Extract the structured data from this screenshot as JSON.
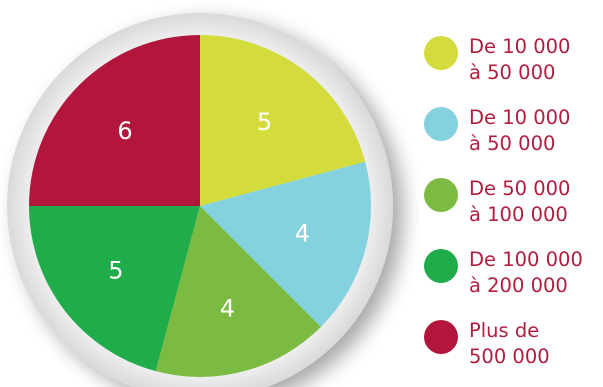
{
  "chart_data": {
    "type": "pie",
    "title": "",
    "start_angle_deg": 0,
    "direction": "clockwise",
    "slices": [
      {
        "label": "De 10 000\nà 50 000",
        "value": 5,
        "color": "#d3dc3c"
      },
      {
        "label": "De 10 000\nà 50 000",
        "value": 4,
        "color": "#84d1e0"
      },
      {
        "label": "De 50 000\nà 100 000",
        "value": 4,
        "color": "#7cbb42"
      },
      {
        "label": "De 100 000\nà 200 000",
        "value": 5,
        "color": "#21ac4b"
      },
      {
        "label": "Plus de\n500 000",
        "value": 6,
        "color": "#b3163c"
      }
    ],
    "legend_position": "right"
  },
  "legend_text_color": "#b01e3f"
}
